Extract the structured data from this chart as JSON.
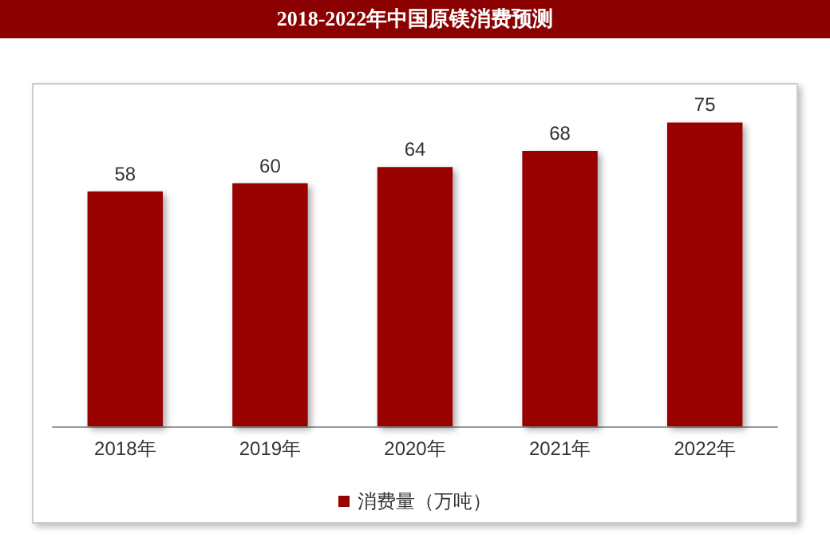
{
  "chart_data": {
    "type": "bar",
    "title": "2018-2022年中国原镁消费预测",
    "categories": [
      "2018年",
      "2019年",
      "2020年",
      "2021年",
      "2022年"
    ],
    "series": [
      {
        "name": "消费量（万吨）",
        "color": "#990000",
        "values": [
          58,
          60,
          64,
          68,
          75
        ]
      }
    ],
    "data_labels": true,
    "legend": "bottom"
  }
}
